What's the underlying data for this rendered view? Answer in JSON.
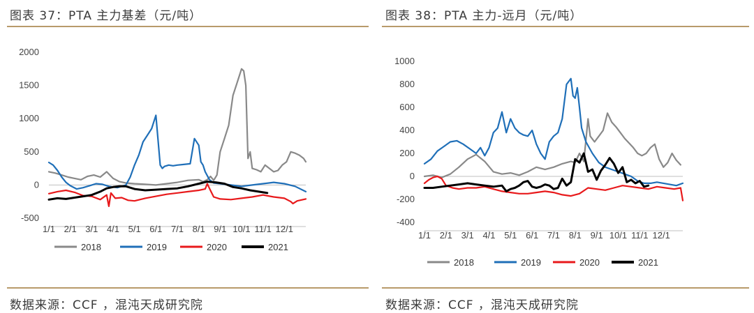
{
  "left_panel": {
    "title": "图表 37：PTA 主力基差（元/吨）",
    "source": "数据来源：CCF ，混沌天成研究院"
  },
  "right_panel": {
    "title": "图表 38：PTA 主力-远月（元/吨）",
    "source": "数据来源：CCF ，混沌天成研究院"
  },
  "chart_data": [
    {
      "type": "line",
      "title": "PTA 主力基差（元/吨）",
      "x_tick_labels": [
        "1/1",
        "2/1",
        "3/1",
        "4/1",
        "5/1",
        "6/1",
        "7/1",
        "8/1",
        "9/1",
        "10/1",
        "11/1",
        "12/1"
      ],
      "ylim": [
        -500,
        2000
      ],
      "y_ticks": [
        -500,
        0,
        500,
        1000,
        1500,
        2000
      ],
      "grid": false,
      "legend_position": "bottom",
      "series": [
        {
          "name": "2018",
          "color": "#898989",
          "x": [
            0,
            0.3,
            0.6,
            0.9,
            1.2,
            1.5,
            1.8,
            2.1,
            2.4,
            2.7,
            3.0,
            3.3,
            3.6,
            4.0,
            4.5,
            5.0,
            5.5,
            6.0,
            6.5,
            7.0,
            7.2,
            7.4,
            7.55,
            7.7,
            7.85,
            8.0,
            8.2,
            8.4,
            8.6,
            8.8,
            9.0,
            9.1,
            9.2,
            9.3,
            9.4,
            9.5,
            9.7,
            9.9,
            10.1,
            10.3,
            10.5,
            10.7,
            10.9,
            11.1,
            11.3,
            11.5,
            11.7,
            11.9,
            12.0
          ],
          "y": [
            200,
            180,
            150,
            120,
            100,
            80,
            130,
            150,
            120,
            200,
            100,
            50,
            30,
            20,
            10,
            0,
            20,
            40,
            70,
            80,
            50,
            80,
            130,
            70,
            150,
            500,
            700,
            900,
            1350,
            1550,
            1750,
            1720,
            1500,
            400,
            500,
            250,
            230,
            200,
            300,
            250,
            200,
            220,
            300,
            350,
            500,
            480,
            450,
            400,
            350
          ]
        },
        {
          "name": "2019",
          "color": "#1f6fb8",
          "x": [
            0,
            0.2,
            0.4,
            0.6,
            0.8,
            1.0,
            1.3,
            1.6,
            1.9,
            2.2,
            2.5,
            2.8,
            3.0,
            3.2,
            3.4,
            3.6,
            3.8,
            4.0,
            4.2,
            4.4,
            4.6,
            4.8,
            5.0,
            5.2,
            5.3,
            5.4,
            5.6,
            5.8,
            6.0,
            6.3,
            6.6,
            6.8,
            7.0,
            7.1,
            7.2,
            7.3,
            7.5,
            7.7,
            8.0,
            8.5,
            9.0,
            9.5,
            10.0,
            10.5,
            11.0,
            11.5,
            12.0
          ],
          "y": [
            340,
            300,
            220,
            120,
            40,
            -10,
            -60,
            -40,
            -10,
            20,
            10,
            -20,
            -30,
            -40,
            -20,
            0,
            120,
            300,
            450,
            650,
            750,
            850,
            1050,
            300,
            250,
            280,
            300,
            290,
            300,
            310,
            320,
            700,
            600,
            350,
            300,
            200,
            80,
            30,
            20,
            0,
            -20,
            0,
            20,
            40,
            20,
            -20,
            -100
          ]
        },
        {
          "name": "2020",
          "color": "#e8191b",
          "x": [
            0,
            0.4,
            0.8,
            1.2,
            1.6,
            2.0,
            2.4,
            2.7,
            2.8,
            2.9,
            3.1,
            3.4,
            3.7,
            4.0,
            4.5,
            5.0,
            5.5,
            6.0,
            6.5,
            7.0,
            7.3,
            7.4,
            7.5,
            7.7,
            8.0,
            8.5,
            9.0,
            9.5,
            10.0,
            10.5,
            11.0,
            11.3,
            11.4,
            11.6,
            12.0
          ],
          "y": [
            -130,
            -100,
            -80,
            -110,
            -160,
            -170,
            -220,
            -150,
            -320,
            -120,
            -200,
            -190,
            -230,
            -240,
            -200,
            -170,
            -140,
            -120,
            -100,
            -80,
            -60,
            20,
            -50,
            -180,
            -210,
            -220,
            -200,
            -180,
            -150,
            -180,
            -200,
            -250,
            -280,
            -240,
            -210
          ]
        },
        {
          "name": "2021",
          "color": "#000000",
          "x": [
            0,
            0.4,
            0.8,
            1.2,
            1.6,
            2.0,
            2.4,
            2.7,
            3.0,
            3.3,
            3.6,
            4.0,
            4.5,
            5.0,
            5.5,
            6.0,
            6.5,
            7.0,
            7.4,
            7.8,
            8.2,
            8.6,
            9.0,
            9.4,
            9.8,
            10.2
          ],
          "y": [
            -220,
            -200,
            -210,
            -190,
            -170,
            -150,
            -100,
            -50,
            -30,
            -20,
            -20,
            -60,
            -80,
            -70,
            -60,
            -50,
            -20,
            20,
            50,
            40,
            20,
            -30,
            -50,
            -80,
            -100,
            -120
          ]
        }
      ]
    },
    {
      "type": "line",
      "title": "PTA 主力-远月（元/吨）",
      "x_tick_labels": [
        "1/1",
        "2/1",
        "3/1",
        "4/1",
        "5/1",
        "6/1",
        "7/1",
        "8/1",
        "9/1",
        "10/1",
        "11/1",
        "12/1"
      ],
      "ylim": [
        -400,
        1000
      ],
      "y_ticks": [
        -400,
        -200,
        0,
        200,
        400,
        600,
        800,
        1000
      ],
      "grid": false,
      "legend_position": "bottom",
      "series": [
        {
          "name": "2018",
          "color": "#898989",
          "x": [
            0,
            0.4,
            0.8,
            1.2,
            1.6,
            2.0,
            2.4,
            2.8,
            3.2,
            3.6,
            4.0,
            4.4,
            4.8,
            5.2,
            5.6,
            6.0,
            6.4,
            6.8,
            7.0,
            7.2,
            7.4,
            7.6,
            7.7,
            7.9,
            8.1,
            8.3,
            8.5,
            8.7,
            8.9,
            9.1,
            9.3,
            9.5,
            9.7,
            9.9,
            10.1,
            10.3,
            10.5,
            10.7,
            10.9,
            11.1,
            11.3,
            11.5,
            11.7,
            11.9
          ],
          "y": [
            0,
            10,
            -10,
            20,
            80,
            150,
            190,
            130,
            40,
            20,
            30,
            10,
            40,
            80,
            60,
            80,
            110,
            130,
            120,
            200,
            130,
            500,
            350,
            300,
            350,
            400,
            550,
            470,
            430,
            380,
            330,
            290,
            250,
            200,
            180,
            200,
            250,
            280,
            150,
            80,
            120,
            200,
            140,
            100
          ]
        },
        {
          "name": "2019",
          "color": "#1f6fb8",
          "x": [
            0,
            0.3,
            0.6,
            0.9,
            1.2,
            1.5,
            1.8,
            2.1,
            2.4,
            2.6,
            2.8,
            3.0,
            3.2,
            3.4,
            3.6,
            3.8,
            4.0,
            4.2,
            4.4,
            4.6,
            4.8,
            5.0,
            5.2,
            5.4,
            5.6,
            5.8,
            6.0,
            6.2,
            6.4,
            6.6,
            6.8,
            6.9,
            7.0,
            7.1,
            7.2,
            7.3,
            7.5,
            7.8,
            8.1,
            8.4,
            8.7,
            9.0,
            9.3,
            9.6,
            9.9,
            10.2,
            10.5,
            10.8,
            11.1,
            11.4,
            11.7,
            12.0
          ],
          "y": [
            110,
            150,
            220,
            260,
            300,
            310,
            280,
            240,
            200,
            250,
            180,
            250,
            380,
            420,
            560,
            380,
            500,
            420,
            380,
            360,
            350,
            400,
            280,
            200,
            150,
            300,
            350,
            380,
            500,
            800,
            850,
            700,
            680,
            770,
            600,
            420,
            300,
            200,
            120,
            80,
            60,
            40,
            20,
            0,
            -40,
            -60,
            -60,
            -50,
            -60,
            -70,
            -80,
            -60
          ]
        },
        {
          "name": "2020",
          "color": "#e8191b",
          "x": [
            0,
            0.2,
            0.4,
            0.6,
            0.8,
            1.0,
            1.3,
            1.6,
            2.0,
            2.4,
            2.8,
            3.2,
            3.6,
            4.0,
            4.4,
            4.8,
            5.2,
            5.6,
            6.0,
            6.4,
            6.8,
            7.2,
            7.6,
            8.0,
            8.4,
            8.8,
            9.2,
            9.6,
            10.0,
            10.4,
            10.8,
            11.2,
            11.6,
            11.9,
            12.0
          ],
          "y": [
            -60,
            -30,
            -10,
            0,
            -20,
            -80,
            -100,
            -110,
            -100,
            -100,
            -90,
            -110,
            -130,
            -140,
            -150,
            -150,
            -140,
            -130,
            -140,
            -160,
            -170,
            -150,
            -100,
            -110,
            -120,
            -100,
            -80,
            -90,
            -100,
            -110,
            -90,
            -100,
            -110,
            -100,
            -210
          ]
        },
        {
          "name": "2021",
          "color": "#000000",
          "x": [
            0,
            0.4,
            0.8,
            1.2,
            1.6,
            2.0,
            2.4,
            2.8,
            3.2,
            3.6,
            3.8,
            4.0,
            4.2,
            4.4,
            4.6,
            4.8,
            5.0,
            5.2,
            5.4,
            5.6,
            5.8,
            6.0,
            6.2,
            6.4,
            6.6,
            6.8,
            7.0,
            7.2,
            7.4,
            7.6,
            7.8,
            8.0,
            8.2,
            8.4,
            8.6,
            8.8,
            9.0,
            9.2,
            9.4,
            9.6,
            9.8,
            10.0,
            10.2,
            10.4
          ],
          "y": [
            -100,
            -100,
            -90,
            -80,
            -70,
            -60,
            -70,
            -80,
            -90,
            -80,
            -130,
            -110,
            -100,
            -80,
            -50,
            -40,
            -90,
            -100,
            -90,
            -70,
            -80,
            -110,
            -100,
            -20,
            -80,
            -50,
            150,
            120,
            200,
            40,
            60,
            -30,
            50,
            100,
            160,
            110,
            30,
            80,
            -50,
            -30,
            -60,
            -40,
            -90,
            -80
          ]
        }
      ]
    }
  ]
}
